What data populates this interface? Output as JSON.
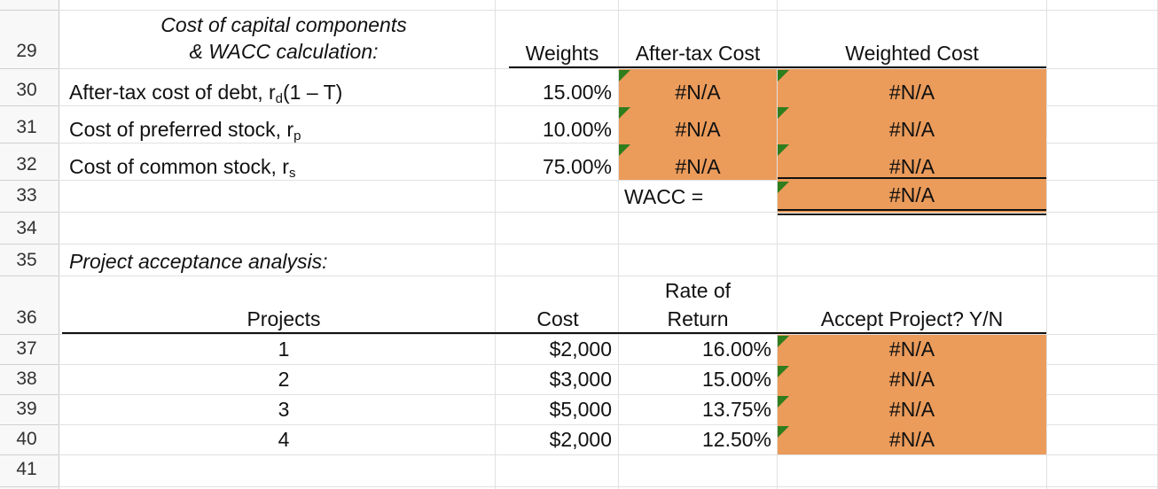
{
  "row_numbers": [
    "29",
    "30",
    "31",
    "32",
    "33",
    "34",
    "35",
    "36",
    "37",
    "38",
    "39",
    "40",
    "41"
  ],
  "wacc_section": {
    "title_line1": "Cost of capital components",
    "title_line2": "& WACC calculation:",
    "headers": {
      "weights": "Weights",
      "after_tax_cost": "After-tax Cost",
      "weighted_cost": "Weighted Cost"
    },
    "rows": [
      {
        "label": "After-tax cost of debt, r",
        "sub": "d",
        "suffix": "(1 – T)",
        "weight": "15.00%",
        "after_tax": "#N/A",
        "weighted": "#N/A"
      },
      {
        "label": "Cost of preferred stock, r",
        "sub": "p",
        "suffix": "",
        "weight": "10.00%",
        "after_tax": "#N/A",
        "weighted": "#N/A"
      },
      {
        "label": "Cost of common stock, r",
        "sub": "s",
        "suffix": "",
        "weight": "75.00%",
        "after_tax": "#N/A",
        "weighted": "#N/A"
      }
    ],
    "wacc_label": "WACC =",
    "wacc_value": "#N/A"
  },
  "project_section": {
    "title": "Project acceptance analysis:",
    "headers": {
      "projects": "Projects",
      "cost": "Cost",
      "rate_line1": "Rate of",
      "rate_line2": "Return",
      "accept": "Accept Project?  Y/N"
    },
    "rows": [
      {
        "project": "1",
        "cost": "$2,000",
        "rate": "16.00%",
        "accept": "#N/A"
      },
      {
        "project": "2",
        "cost": "$3,000",
        "rate": "15.00%",
        "accept": "#N/A"
      },
      {
        "project": "3",
        "cost": "$5,000",
        "rate": "13.75%",
        "accept": "#N/A"
      },
      {
        "project": "4",
        "cost": "$2,000",
        "rate": "12.50%",
        "accept": "#N/A"
      }
    ]
  },
  "colors": {
    "highlight": "#eb9b5a",
    "error_indicator": "#2f7d1d",
    "grid": "#e1e1e1"
  }
}
